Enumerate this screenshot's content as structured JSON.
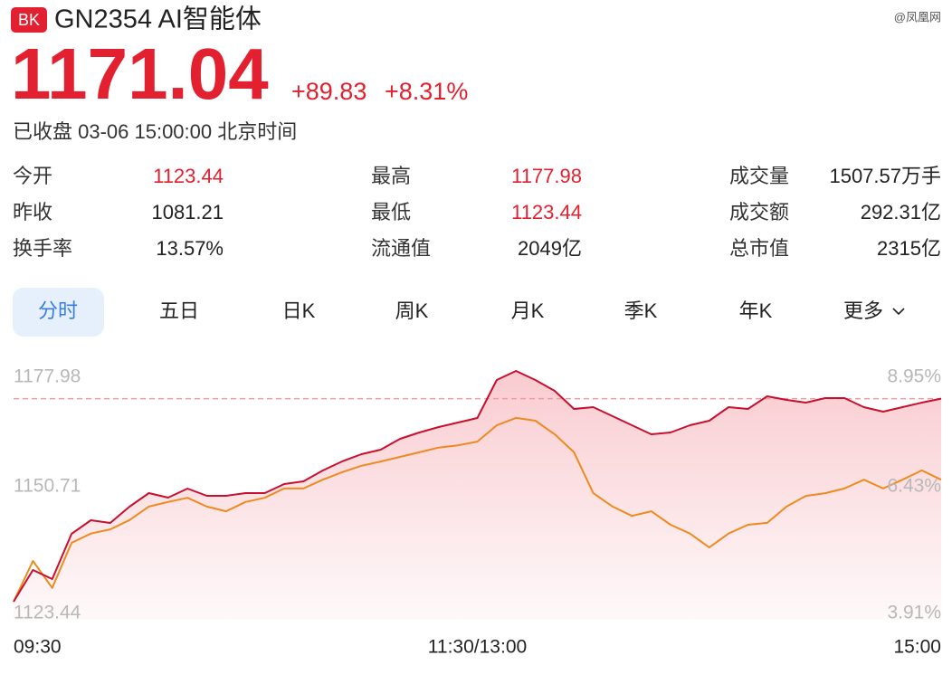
{
  "header": {
    "badge": "BK",
    "title": "GN2354 AI智能体",
    "watermark": "@凤凰网"
  },
  "quote": {
    "price": 1171.04,
    "change": "+89.83",
    "change_pct": "+8.31%",
    "status": "已收盘 03-06 15:00:00 北京时间",
    "color": "#e3202f"
  },
  "stats": [
    [
      {
        "label": "今开",
        "value": "1123.44",
        "color": "#e3202f"
      },
      {
        "label": "最高",
        "value": "1177.98",
        "color": "#e3202f"
      },
      {
        "label": "成交量",
        "value": "1507.57万手"
      }
    ],
    [
      {
        "label": "昨收",
        "value": "1081.21"
      },
      {
        "label": "最低",
        "value": "1123.44",
        "color": "#e3202f"
      },
      {
        "label": "成交额",
        "value": "292.31亿"
      }
    ],
    [
      {
        "label": "换手率",
        "value": "13.57%"
      },
      {
        "label": "流通值",
        "value": "2049亿"
      },
      {
        "label": "总市值",
        "value": "2315亿"
      }
    ]
  ],
  "tabs": {
    "items": [
      "分时",
      "五日",
      "日K",
      "周K",
      "月K",
      "季K",
      "年K",
      "更多"
    ],
    "active": 0
  },
  "chart_data": {
    "type": "line",
    "x": [
      0,
      5,
      10,
      15,
      20,
      25,
      30,
      35,
      40,
      45,
      50,
      55,
      60,
      65,
      70,
      75,
      80,
      85,
      90,
      95,
      100,
      105,
      110,
      115,
      120,
      125,
      130,
      135,
      140,
      145,
      150,
      155,
      160,
      165,
      170,
      175,
      180,
      185,
      190,
      195,
      200,
      205,
      210,
      215,
      220,
      225,
      230,
      235,
      240
    ],
    "xlim": [
      0,
      240
    ],
    "xticks": [
      {
        "value": 0,
        "label": "09:30"
      },
      {
        "value": 120,
        "label": "11:30/13:00"
      },
      {
        "value": 240,
        "label": "15:00"
      }
    ],
    "ylim": [
      1123.44,
      1177.98
    ],
    "yticks": [
      1123.44,
      1150.71,
      1177.98
    ],
    "y2lim": [
      3.91,
      8.95
    ],
    "y2ticks": [
      {
        "value": 3.91,
        "label": "3.91%"
      },
      {
        "value": 6.43,
        "label": "6.43%"
      },
      {
        "value": 8.95,
        "label": "8.95%"
      }
    ],
    "grid": false,
    "series": [
      {
        "color": "#c8102e",
        "fill": true,
        "values": [
          1127.34,
          1134.15,
          1132.21,
          1141.95,
          1144.87,
          1144.28,
          1147.79,
          1150.71,
          1149.74,
          1151.68,
          1150.13,
          1150.13,
          1150.71,
          1150.71,
          1152.66,
          1153.24,
          1155.58,
          1157.53,
          1159.09,
          1160.06,
          1162.4,
          1163.76,
          1164.93,
          1165.9,
          1166.88,
          1175.06,
          1177.01,
          1175.06,
          1172.72,
          1168.83,
          1169.21,
          1167.27,
          1165.32,
          1163.37,
          1163.76,
          1165.32,
          1166.29,
          1169.21,
          1168.83,
          1171.55,
          1170.77,
          1170.19,
          1171.16,
          1171.16,
          1169.21,
          1168.24,
          1169.21,
          1170.19,
          1171.04
        ]
      },
      {
        "color": "#ee8a1f",
        "fill": false,
        "values": [
          1127.3,
          1136.1,
          1130.3,
          1140.0,
          1142.0,
          1142.9,
          1144.9,
          1147.8,
          1148.8,
          1149.7,
          1147.8,
          1146.8,
          1148.8,
          1149.7,
          1151.7,
          1151.7,
          1153.6,
          1155.2,
          1156.6,
          1157.5,
          1158.5,
          1159.5,
          1160.5,
          1161.0,
          1161.8,
          1165.3,
          1166.9,
          1166.3,
          1163.4,
          1159.5,
          1150.7,
          1147.8,
          1145.8,
          1146.8,
          1143.9,
          1142.0,
          1139.0,
          1142.0,
          1143.9,
          1144.3,
          1147.8,
          1150.1,
          1150.7,
          1151.7,
          1153.6,
          1151.7,
          1153.6,
          1155.6,
          1153.6
        ]
      }
    ]
  }
}
